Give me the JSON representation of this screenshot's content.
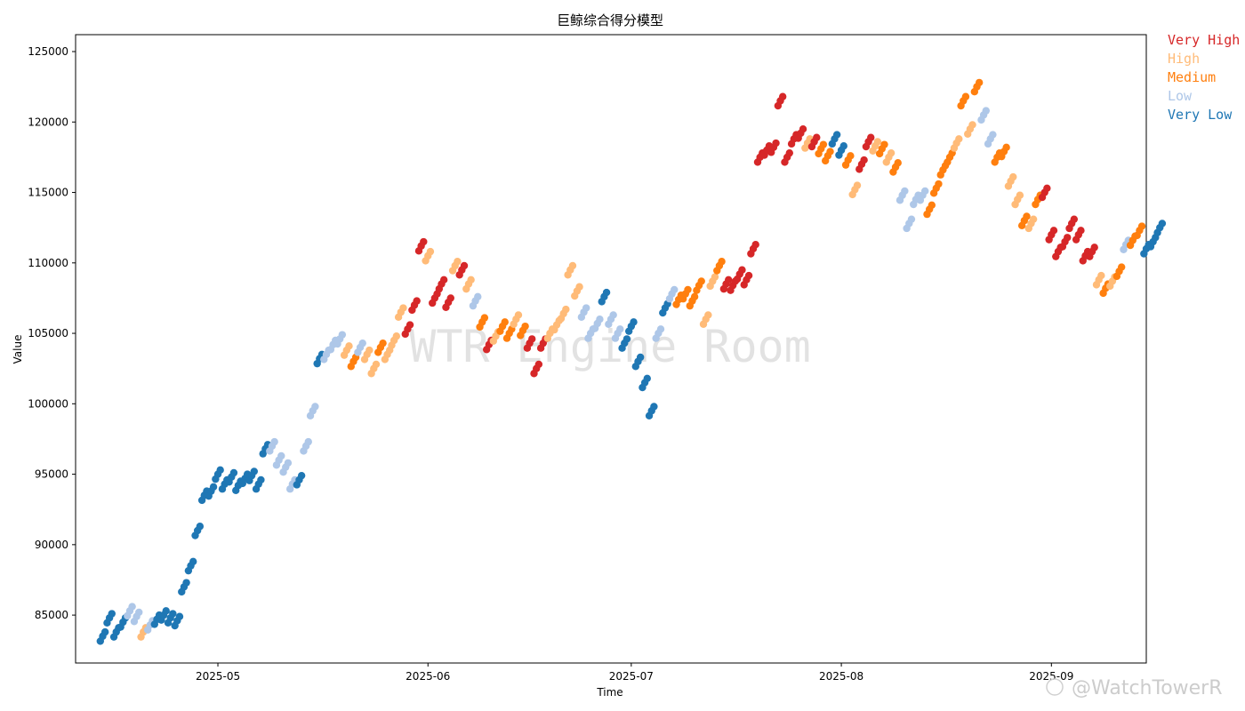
{
  "chart_data": {
    "type": "scatter",
    "title": "巨鲸综合得分模型",
    "xlabel": "Time",
    "ylabel": "Value",
    "xlim": [
      "2025-04-10",
      "2025-09-15"
    ],
    "ylim": [
      81600,
      126200
    ],
    "yticks": [
      85000,
      90000,
      95000,
      100000,
      105000,
      110000,
      115000,
      120000,
      125000
    ],
    "xticks": [
      {
        "date": "2025-05-01",
        "label": "2025-05"
      },
      {
        "date": "2025-06-01",
        "label": "2025-06"
      },
      {
        "date": "2025-07-01",
        "label": "2025-07"
      },
      {
        "date": "2025-08-01",
        "label": "2025-08"
      },
      {
        "date": "2025-09-01",
        "label": "2025-09"
      }
    ],
    "grid": false,
    "legend_position": "outside-top-right",
    "levels": [
      {
        "name": "Very High",
        "color": "#d62728"
      },
      {
        "name": "High",
        "color": "#ffbb78"
      },
      {
        "name": "Medium",
        "color": "#ff7f0e"
      },
      {
        "name": "Low",
        "color": "#aec7e8"
      },
      {
        "name": "Very Low",
        "color": "#1f77b4"
      }
    ],
    "points": [
      [
        "2025-04-14",
        83500,
        "Very Low"
      ],
      [
        "2025-04-15",
        84800,
        "Very Low"
      ],
      [
        "2025-04-16",
        83800,
        "Very Low"
      ],
      [
        "2025-04-17",
        84500,
        "Very Low"
      ],
      [
        "2025-04-18",
        85300,
        "Low"
      ],
      [
        "2025-04-19",
        84900,
        "Low"
      ],
      [
        "2025-04-20",
        83800,
        "High"
      ],
      [
        "2025-04-21",
        84300,
        "Low"
      ],
      [
        "2025-04-22",
        84700,
        "Very Low"
      ],
      [
        "2025-04-23",
        85000,
        "Very Low"
      ],
      [
        "2025-04-24",
        84800,
        "Very Low"
      ],
      [
        "2025-04-25",
        84600,
        "Very Low"
      ],
      [
        "2025-04-26",
        87000,
        "Very Low"
      ],
      [
        "2025-04-27",
        88500,
        "Very Low"
      ],
      [
        "2025-04-28",
        91000,
        "Very Low"
      ],
      [
        "2025-04-29",
        93500,
        "Very Low"
      ],
      [
        "2025-04-30",
        93800,
        "Very Low"
      ],
      [
        "2025-05-01",
        95000,
        "Very Low"
      ],
      [
        "2025-05-02",
        94300,
        "Very Low"
      ],
      [
        "2025-05-03",
        94800,
        "Very Low"
      ],
      [
        "2025-05-04",
        94200,
        "Very Low"
      ],
      [
        "2025-05-05",
        94700,
        "Very Low"
      ],
      [
        "2025-05-06",
        94900,
        "Very Low"
      ],
      [
        "2025-05-07",
        94300,
        "Very Low"
      ],
      [
        "2025-05-08",
        96800,
        "Very Low"
      ],
      [
        "2025-05-09",
        97000,
        "Low"
      ],
      [
        "2025-05-10",
        96000,
        "Low"
      ],
      [
        "2025-05-11",
        95500,
        "Low"
      ],
      [
        "2025-05-12",
        94300,
        "Low"
      ],
      [
        "2025-05-13",
        94600,
        "Very Low"
      ],
      [
        "2025-05-14",
        97000,
        "Low"
      ],
      [
        "2025-05-15",
        99500,
        "Low"
      ],
      [
        "2025-05-16",
        103200,
        "Very Low"
      ],
      [
        "2025-05-17",
        103500,
        "Low"
      ],
      [
        "2025-05-18",
        104200,
        "Low"
      ],
      [
        "2025-05-19",
        104600,
        "Low"
      ],
      [
        "2025-05-20",
        103800,
        "High"
      ],
      [
        "2025-05-21",
        103000,
        "Medium"
      ],
      [
        "2025-05-22",
        104000,
        "Low"
      ],
      [
        "2025-05-23",
        103500,
        "High"
      ],
      [
        "2025-05-24",
        102500,
        "High"
      ],
      [
        "2025-05-25",
        104000,
        "Medium"
      ],
      [
        "2025-05-26",
        103500,
        "High"
      ],
      [
        "2025-05-27",
        104500,
        "High"
      ],
      [
        "2025-05-28",
        106500,
        "High"
      ],
      [
        "2025-05-29",
        105300,
        "Very High"
      ],
      [
        "2025-05-30",
        107000,
        "Very High"
      ],
      [
        "2025-05-31",
        111200,
        "Very High"
      ],
      [
        "2025-06-01",
        110500,
        "High"
      ],
      [
        "2025-06-02",
        107500,
        "Very High"
      ],
      [
        "2025-06-03",
        108500,
        "Very High"
      ],
      [
        "2025-06-04",
        107200,
        "Very High"
      ],
      [
        "2025-06-05",
        109800,
        "High"
      ],
      [
        "2025-06-06",
        109500,
        "Very High"
      ],
      [
        "2025-06-07",
        108500,
        "High"
      ],
      [
        "2025-06-08",
        107300,
        "Low"
      ],
      [
        "2025-06-09",
        105800,
        "Medium"
      ],
      [
        "2025-06-10",
        104200,
        "Very High"
      ],
      [
        "2025-06-11",
        104800,
        "High"
      ],
      [
        "2025-06-12",
        105500,
        "Medium"
      ],
      [
        "2025-06-13",
        105000,
        "Medium"
      ],
      [
        "2025-06-14",
        106000,
        "High"
      ],
      [
        "2025-06-15",
        105200,
        "Medium"
      ],
      [
        "2025-06-16",
        104300,
        "Very High"
      ],
      [
        "2025-06-17",
        102500,
        "Very High"
      ],
      [
        "2025-06-18",
        104300,
        "Very High"
      ],
      [
        "2025-06-19",
        105000,
        "High"
      ],
      [
        "2025-06-20",
        105600,
        "High"
      ],
      [
        "2025-06-21",
        106400,
        "High"
      ],
      [
        "2025-06-22",
        109500,
        "High"
      ],
      [
        "2025-06-23",
        108000,
        "High"
      ],
      [
        "2025-06-24",
        106500,
        "Low"
      ],
      [
        "2025-06-25",
        105000,
        "Low"
      ],
      [
        "2025-06-26",
        105700,
        "Low"
      ],
      [
        "2025-06-27",
        107600,
        "Very Low"
      ],
      [
        "2025-06-28",
        106000,
        "Low"
      ],
      [
        "2025-06-29",
        105000,
        "Low"
      ],
      [
        "2025-06-30",
        104300,
        "Very Low"
      ],
      [
        "2025-07-01",
        105500,
        "Very Low"
      ],
      [
        "2025-07-02",
        103000,
        "Very Low"
      ],
      [
        "2025-07-03",
        101500,
        "Very Low"
      ],
      [
        "2025-07-04",
        99500,
        "Very Low"
      ],
      [
        "2025-07-05",
        105000,
        "Low"
      ],
      [
        "2025-07-06",
        106800,
        "Very Low"
      ],
      [
        "2025-07-07",
        107800,
        "Low"
      ],
      [
        "2025-07-08",
        107400,
        "Medium"
      ],
      [
        "2025-07-09",
        107800,
        "Medium"
      ],
      [
        "2025-07-10",
        107300,
        "Medium"
      ],
      [
        "2025-07-11",
        108400,
        "Medium"
      ],
      [
        "2025-07-12",
        106000,
        "High"
      ],
      [
        "2025-07-13",
        108700,
        "High"
      ],
      [
        "2025-07-14",
        109800,
        "Medium"
      ],
      [
        "2025-07-15",
        108500,
        "Very High"
      ],
      [
        "2025-07-16",
        108400,
        "Very High"
      ],
      [
        "2025-07-17",
        109200,
        "Very High"
      ],
      [
        "2025-07-18",
        108800,
        "Very High"
      ],
      [
        "2025-07-19",
        111000,
        "Very High"
      ],
      [
        "2025-07-20",
        117500,
        "Very High"
      ],
      [
        "2025-07-21",
        118000,
        "Very High"
      ],
      [
        "2025-07-22",
        118200,
        "Very High"
      ],
      [
        "2025-07-23",
        121500,
        "Very High"
      ],
      [
        "2025-07-24",
        117500,
        "Very High"
      ],
      [
        "2025-07-25",
        118800,
        "Very High"
      ],
      [
        "2025-07-26",
        119200,
        "Very High"
      ],
      [
        "2025-07-27",
        118500,
        "High"
      ],
      [
        "2025-07-28",
        118600,
        "Very High"
      ],
      [
        "2025-07-29",
        118100,
        "Medium"
      ],
      [
        "2025-07-30",
        117600,
        "Medium"
      ],
      [
        "2025-07-31",
        118800,
        "Very Low"
      ],
      [
        "2025-08-01",
        118000,
        "Very Low"
      ],
      [
        "2025-08-02",
        117300,
        "Medium"
      ],
      [
        "2025-08-03",
        115200,
        "High"
      ],
      [
        "2025-08-04",
        117000,
        "Very High"
      ],
      [
        "2025-08-05",
        118600,
        "Very High"
      ],
      [
        "2025-08-06",
        118300,
        "High"
      ],
      [
        "2025-08-07",
        118100,
        "Medium"
      ],
      [
        "2025-08-08",
        117500,
        "High"
      ],
      [
        "2025-08-09",
        116800,
        "Medium"
      ],
      [
        "2025-08-10",
        114800,
        "Low"
      ],
      [
        "2025-08-11",
        112800,
        "Low"
      ],
      [
        "2025-08-12",
        114500,
        "Low"
      ],
      [
        "2025-08-13",
        114800,
        "Low"
      ],
      [
        "2025-08-14",
        113800,
        "Medium"
      ],
      [
        "2025-08-15",
        115300,
        "Medium"
      ],
      [
        "2025-08-16",
        116600,
        "Medium"
      ],
      [
        "2025-08-17",
        117500,
        "Medium"
      ],
      [
        "2025-08-18",
        118500,
        "High"
      ],
      [
        "2025-08-19",
        121500,
        "Medium"
      ],
      [
        "2025-08-20",
        119500,
        "High"
      ],
      [
        "2025-08-21",
        122500,
        "Medium"
      ],
      [
        "2025-08-22",
        120500,
        "Low"
      ],
      [
        "2025-08-23",
        118800,
        "Low"
      ],
      [
        "2025-08-24",
        117500,
        "Medium"
      ],
      [
        "2025-08-25",
        117900,
        "Medium"
      ],
      [
        "2025-08-26",
        115800,
        "High"
      ],
      [
        "2025-08-27",
        114500,
        "High"
      ],
      [
        "2025-08-28",
        113000,
        "Medium"
      ],
      [
        "2025-08-29",
        112800,
        "High"
      ],
      [
        "2025-08-30",
        114500,
        "Medium"
      ],
      [
        "2025-08-31",
        115000,
        "Very High"
      ],
      [
        "2025-09-01",
        112000,
        "Very High"
      ],
      [
        "2025-09-02",
        110800,
        "Very High"
      ],
      [
        "2025-09-03",
        111500,
        "Very High"
      ],
      [
        "2025-09-04",
        112800,
        "Very High"
      ],
      [
        "2025-09-05",
        112000,
        "Very High"
      ],
      [
        "2025-09-06",
        110500,
        "Very High"
      ],
      [
        "2025-09-07",
        110800,
        "Very High"
      ],
      [
        "2025-09-08",
        108800,
        "High"
      ],
      [
        "2025-09-09",
        108200,
        "Medium"
      ],
      [
        "2025-09-10",
        108700,
        "High"
      ],
      [
        "2025-09-11",
        109400,
        "Medium"
      ],
      [
        "2025-09-12",
        111300,
        "Low"
      ],
      [
        "2025-09-13",
        111600,
        "Medium"
      ],
      [
        "2025-09-14",
        112300,
        "Medium"
      ],
      [
        "2025-09-15",
        111000,
        "Very Low"
      ],
      [
        "2025-09-16",
        111500,
        "Very Low"
      ],
      [
        "2025-09-17",
        112500,
        "Very Low"
      ]
    ]
  },
  "watermark": "WTR Engine Room",
  "corner_watermark": "@WatchTowerR"
}
